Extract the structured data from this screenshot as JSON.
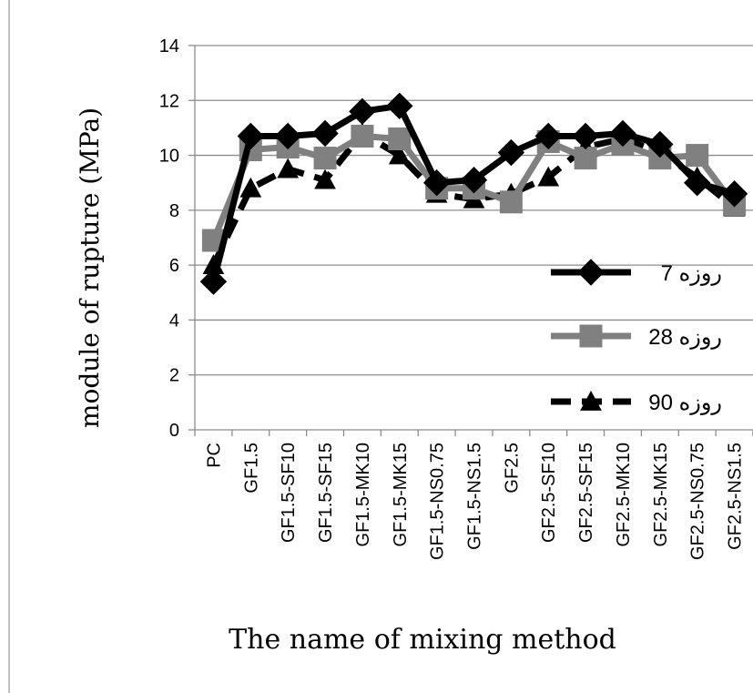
{
  "chart_data": {
    "type": "line",
    "xlabel": "The name of mixing method",
    "ylabel": "module of rupture (MPa)",
    "categories": [
      "PC",
      "GF1.5",
      "GF1.5-SF10",
      "GF1.5-SF15",
      "GF1.5-MK10",
      "GF1.5-MK15",
      "GF1.5-NS0.75",
      "GF1.5-NS1.5",
      "GF2.5",
      "GF2.5-SF10",
      "GF2.5-SF15",
      "GF2.5-MK10",
      "GF2.5-MK15",
      "GF2.5-NS0.75",
      "GF2.5-NS1.5"
    ],
    "ylim": [
      0,
      14
    ],
    "yticks": [
      0,
      2,
      4,
      6,
      8,
      10,
      12,
      14
    ],
    "grid": true,
    "legend_position": "right",
    "series": [
      {
        "name": "7 روزه",
        "marker": "diamond",
        "line_style": "solid",
        "color": "#000000",
        "values": [
          5.4,
          10.7,
          10.7,
          10.8,
          11.6,
          11.8,
          9.0,
          9.1,
          10.1,
          10.7,
          10.7,
          10.8,
          10.4,
          9.0,
          8.6
        ]
      },
      {
        "name": "28 روزه",
        "marker": "square",
        "line_style": "solid",
        "color": "#808080",
        "values": [
          6.9,
          10.2,
          10.3,
          9.9,
          10.7,
          10.6,
          8.8,
          8.8,
          8.3,
          10.5,
          9.9,
          10.4,
          9.9,
          10.0,
          8.2
        ]
      },
      {
        "name": "90 روزه",
        "marker": "triangle",
        "line_style": "dashed",
        "color": "#000000",
        "values": [
          6.0,
          8.8,
          9.5,
          9.1,
          10.8,
          10.0,
          8.6,
          8.4,
          8.6,
          9.2,
          10.3,
          10.6,
          10.1,
          9.2,
          8.1
        ]
      }
    ]
  }
}
